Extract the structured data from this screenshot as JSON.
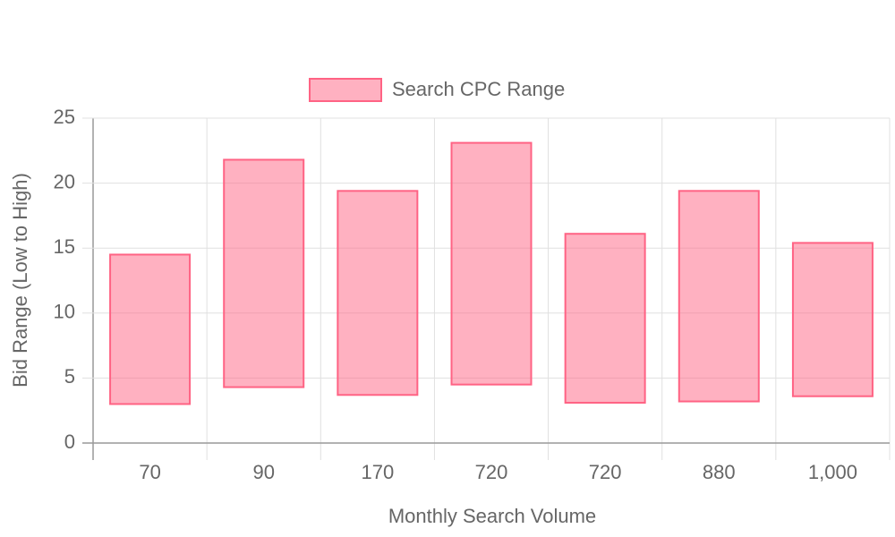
{
  "chart_data": {
    "type": "floating-bar",
    "x_label": "Monthly Search Volume",
    "y_label": "Bid Range (Low to High)",
    "categories": [
      "70",
      "90",
      "170",
      "720",
      "720",
      "880",
      "1,000"
    ],
    "series": [
      {
        "name": "Search CPC Range",
        "color": "#ff6384",
        "fill": "rgba(255, 99, 132, 0.5)",
        "values": [
          [
            3.0,
            14.5
          ],
          [
            4.3,
            21.8
          ],
          [
            3.7,
            19.4
          ],
          [
            4.5,
            23.1
          ],
          [
            3.1,
            16.1
          ],
          [
            3.2,
            19.4
          ],
          [
            3.6,
            15.4
          ]
        ]
      }
    ],
    "ylim": [
      0,
      25
    ],
    "yticks": [
      0,
      5,
      10,
      15,
      20,
      25
    ],
    "grid": true,
    "legend": "top"
  }
}
